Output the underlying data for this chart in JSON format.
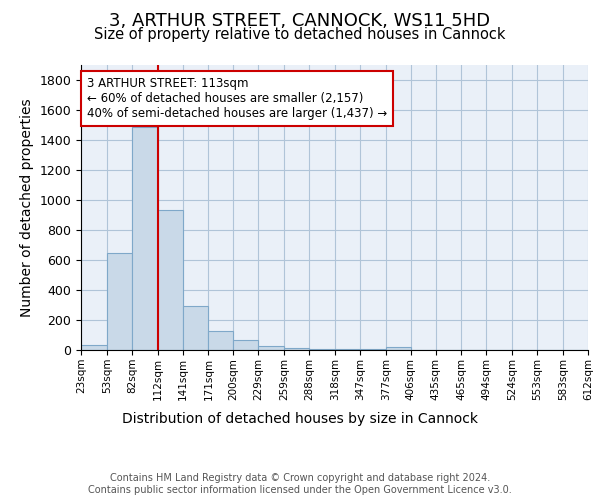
{
  "title": "3, ARTHUR STREET, CANNOCK, WS11 5HD",
  "subtitle": "Size of property relative to detached houses in Cannock",
  "xlabel": "Distribution of detached houses by size in Cannock",
  "ylabel": "Number of detached properties",
  "bin_edges": [
    23,
    53,
    82,
    112,
    141,
    171,
    200,
    229,
    259,
    288,
    318,
    347,
    377,
    406,
    435,
    465,
    494,
    524,
    553,
    583,
    612
  ],
  "bar_heights": [
    35,
    650,
    1490,
    935,
    295,
    130,
    65,
    25,
    15,
    5,
    5,
    5,
    20,
    0,
    0,
    0,
    0,
    0,
    0,
    0
  ],
  "bar_color": "#c9d9e8",
  "bar_edge_color": "#7fa8c9",
  "vertical_line_x": 113,
  "vertical_line_color": "#cc0000",
  "annotation_text": "3 ARTHUR STREET: 113sqm\n← 60% of detached houses are smaller (2,157)\n40% of semi-detached houses are larger (1,437) →",
  "annotation_box_color": "#ffffff",
  "annotation_box_edge_color": "#cc0000",
  "ylim": [
    0,
    1900
  ],
  "yticks": [
    0,
    200,
    400,
    600,
    800,
    1000,
    1200,
    1400,
    1600,
    1800
  ],
  "grid_color": "#b0c4d8",
  "background_color": "#eaf0f8",
  "tick_labels": [
    "23sqm",
    "53sqm",
    "82sqm",
    "112sqm",
    "141sqm",
    "171sqm",
    "200sqm",
    "229sqm",
    "259sqm",
    "288sqm",
    "318sqm",
    "347sqm",
    "377sqm",
    "406sqm",
    "435sqm",
    "465sqm",
    "494sqm",
    "524sqm",
    "553sqm",
    "583sqm",
    "612sqm"
  ],
  "footer_text": "Contains HM Land Registry data © Crown copyright and database right 2024.\nContains public sector information licensed under the Open Government Licence v3.0."
}
